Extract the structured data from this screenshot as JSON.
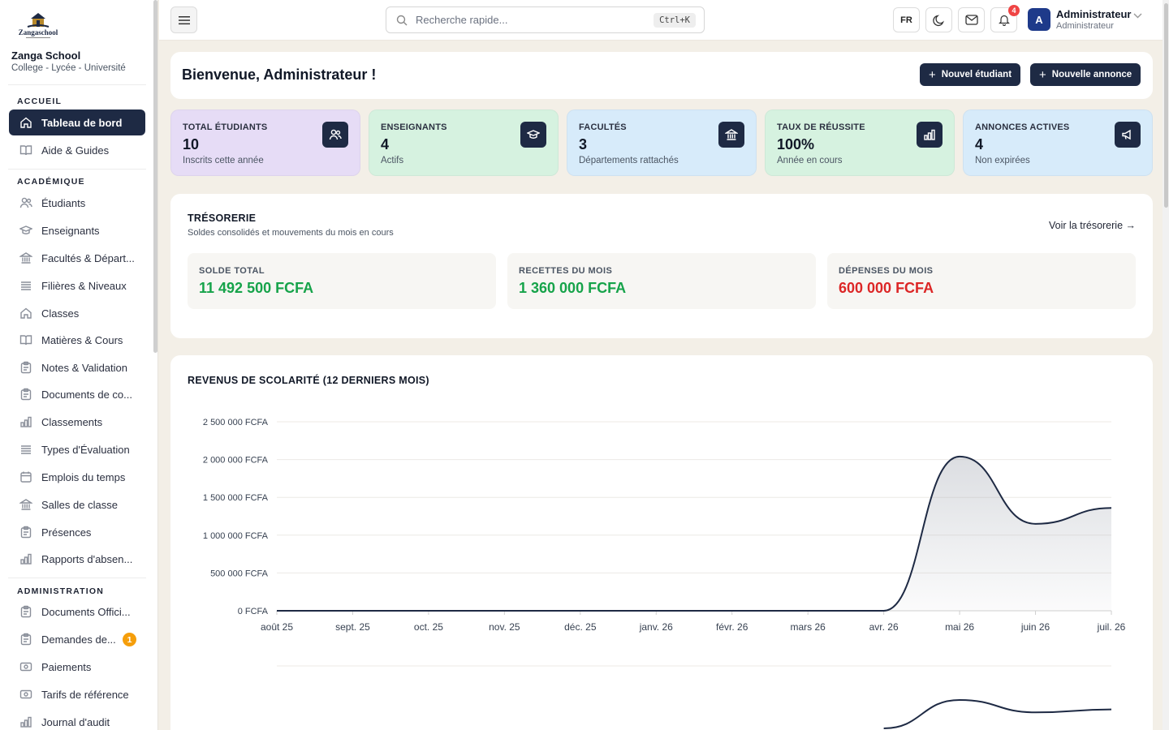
{
  "school": {
    "logo_text": "Zangaschool",
    "name": "Zanga School",
    "subtitle": "College - Lycée - Université"
  },
  "sidebar": {
    "sections": [
      {
        "title": "ACCUEIL"
      },
      {
        "title": "ACADÉMIQUE"
      },
      {
        "title": "ADMINISTRATION"
      }
    ],
    "items": [
      {
        "label": "Tableau de bord",
        "icon": "home-icon",
        "active": true
      },
      {
        "label": "Aide & Guides",
        "icon": "book-icon"
      },
      {
        "label": "Étudiants",
        "icon": "users-icon"
      },
      {
        "label": "Enseignants",
        "icon": "graduation-cap-icon"
      },
      {
        "label": "Facultés & Départ...",
        "icon": "building-icon"
      },
      {
        "label": "Filières & Niveaux",
        "icon": "list-icon"
      },
      {
        "label": "Classes",
        "icon": "home-icon"
      },
      {
        "label": "Matières & Cours",
        "icon": "book-icon"
      },
      {
        "label": "Notes & Validation",
        "icon": "clipboard-icon"
      },
      {
        "label": "Documents de co...",
        "icon": "clipboard-icon"
      },
      {
        "label": "Classements",
        "icon": "bar-chart-icon"
      },
      {
        "label": "Types d'Évaluation",
        "icon": "list-icon"
      },
      {
        "label": "Emplois du temps",
        "icon": "calendar-icon"
      },
      {
        "label": "Salles de classe",
        "icon": "building-icon"
      },
      {
        "label": "Présences",
        "icon": "clipboard-icon"
      },
      {
        "label": "Rapports d'absen...",
        "icon": "bar-chart-icon"
      },
      {
        "label": "Documents Offici...",
        "icon": "clipboard-icon"
      },
      {
        "label": "Demandes de...",
        "icon": "clipboard-icon",
        "badge": "1"
      },
      {
        "label": "Paiements",
        "icon": "wallet-icon"
      },
      {
        "label": "Tarifs de référence",
        "icon": "wallet-icon"
      },
      {
        "label": "Journal d'audit",
        "icon": "bar-chart-icon"
      }
    ]
  },
  "topbar": {
    "search_placeholder": "Recherche rapide...",
    "shortcut": "Ctrl+K",
    "lang": "FR",
    "notif_count": "4",
    "user_initial": "A",
    "user_name": "Administrateur",
    "user_role": "Administrateur"
  },
  "welcome": {
    "title": "Bienvenue, Administrateur !",
    "btn_new_student": "Nouvel étudiant",
    "btn_new_announce": "Nouvelle annonce"
  },
  "stats": [
    {
      "label": "TOTAL ÉTUDIANTS",
      "value": "10",
      "sub": "Inscrits cette année",
      "bg": "#e6dcf6",
      "icon": "users-icon"
    },
    {
      "label": "ENSEIGNANTS",
      "value": "4",
      "sub": "Actifs",
      "bg": "#d6f2e0",
      "icon": "graduation-cap-icon"
    },
    {
      "label": "FACULTÉS",
      "value": "3",
      "sub": "Départements rattachés",
      "bg": "#d7ebfa",
      "icon": "building-icon"
    },
    {
      "label": "TAUX DE RÉUSSITE",
      "value": "100%",
      "sub": "Année en cours",
      "bg": "#d6f2e0",
      "icon": "bar-chart-icon"
    },
    {
      "label": "ANNONCES ACTIVES",
      "value": "4",
      "sub": "Non expirées",
      "bg": "#d7ebfa",
      "icon": "megaphone-icon"
    }
  ],
  "treasury": {
    "title": "TRÉSORERIE",
    "subtitle": "Soldes consolidés et mouvements du mois en cours",
    "link": "Voir la trésorerie →",
    "boxes": [
      {
        "label": "SOLDE TOTAL",
        "amount": "11 492 500 FCFA",
        "color": "#16a34a"
      },
      {
        "label": "RECETTES DU MOIS",
        "amount": "1 360 000 FCFA",
        "color": "#16a34a"
      },
      {
        "label": "DÉPENSES DU MOIS",
        "amount": "600 000 FCFA",
        "color": "#dc2626"
      }
    ]
  },
  "chart_data": {
    "type": "area",
    "title": "REVENUS DE SCOLARITÉ (12 DERNIERS MOIS)",
    "categories": [
      "août 25",
      "sept. 25",
      "oct. 25",
      "nov. 25",
      "déc. 25",
      "janv. 26",
      "févr. 26",
      "mars 26",
      "avr. 26",
      "mai 26",
      "juin 26",
      "juil. 26"
    ],
    "values": [
      0,
      0,
      0,
      0,
      0,
      0,
      0,
      0,
      0,
      2040000,
      1150000,
      1360000
    ],
    "ylim": [
      0,
      2500000
    ],
    "yticks": [
      "0 FCFA",
      "500 000 FCFA",
      "1 000 000 FCFA",
      "1 500 000 FCFA",
      "2 000 000 FCFA",
      "2 500 000 FCFA"
    ],
    "grid": true,
    "line_color": "#1e2a44"
  }
}
